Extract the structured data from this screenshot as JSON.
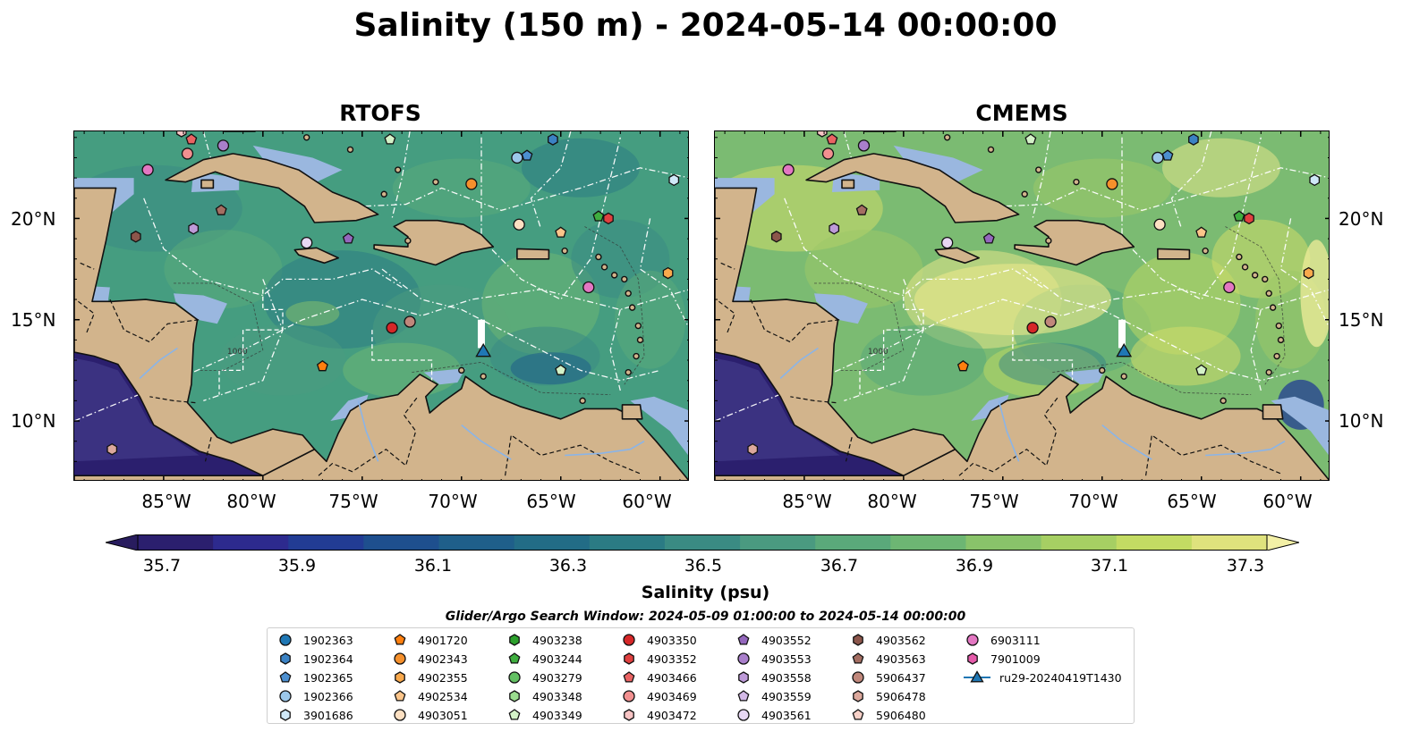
{
  "title": "Salinity (150 m) - 2024-05-14 00:00:00",
  "panels": [
    {
      "title": "RTOFS",
      "variant": "rtofs"
    },
    {
      "title": "CMEMS",
      "variant": "cmems"
    }
  ],
  "x_ticks": [
    "85°W",
    "80°W",
    "75°W",
    "70°W",
    "65°W",
    "60°W"
  ],
  "y_ticks": [
    "20°N",
    "15°N",
    "10°N"
  ],
  "colorbar": {
    "label": "Salinity (psu)",
    "ticks": [
      "35.7",
      "35.9",
      "36.1",
      "36.3",
      "36.5",
      "36.7",
      "36.9",
      "37.1",
      "37.3"
    ],
    "colors": [
      "#2b1f6e",
      "#2d2a8e",
      "#223c94",
      "#1e4f8e",
      "#1f5f8a",
      "#226c86",
      "#2b7b84",
      "#3a8b83",
      "#4a9a80",
      "#5aa97a",
      "#6db673",
      "#89c36a",
      "#a6cf63",
      "#c3db63",
      "#dfe27d"
    ]
  },
  "contour_label": "1000",
  "search_window": "Glider/Argo Search Window: 2024-05-09 01:00:00 to 2024-05-14 00:00:00",
  "legend": [
    {
      "label": "1902363",
      "marker": "circle",
      "color": "#1f77b4"
    },
    {
      "label": "1902364",
      "marker": "hexagon",
      "color": "#3b82c4"
    },
    {
      "label": "1902365",
      "marker": "pentagon",
      "color": "#4c8fd0"
    },
    {
      "label": "1902366",
      "marker": "circle",
      "color": "#9cc8ea"
    },
    {
      "label": "3901686",
      "marker": "hexagon",
      "color": "#cfe8f8"
    },
    {
      "label": "4901720",
      "marker": "pentagon",
      "color": "#ff7f0e"
    },
    {
      "label": "4902343",
      "marker": "circle",
      "color": "#f5902c"
    },
    {
      "label": "4902355",
      "marker": "hexagon",
      "color": "#f9a94c"
    },
    {
      "label": "4902534",
      "marker": "pentagon",
      "color": "#fcc58a"
    },
    {
      "label": "4903051",
      "marker": "circle",
      "color": "#fde0c2"
    },
    {
      "label": "4903238",
      "marker": "hexagon",
      "color": "#2ca02c"
    },
    {
      "label": "4903244",
      "marker": "pentagon",
      "color": "#3fae3f"
    },
    {
      "label": "4903279",
      "marker": "circle",
      "color": "#63c063"
    },
    {
      "label": "4903348",
      "marker": "hexagon",
      "color": "#9bdc8f"
    },
    {
      "label": "4903349",
      "marker": "pentagon",
      "color": "#d4f2c8"
    },
    {
      "label": "4903350",
      "marker": "circle",
      "color": "#d62728"
    },
    {
      "label": "4903352",
      "marker": "hexagon",
      "color": "#e0403f"
    },
    {
      "label": "4903466",
      "marker": "pentagon",
      "color": "#ea6363"
    },
    {
      "label": "4903469",
      "marker": "circle",
      "color": "#f29090"
    },
    {
      "label": "4903472",
      "marker": "hexagon",
      "color": "#f8c4c4"
    },
    {
      "label": "4903552",
      "marker": "pentagon",
      "color": "#9467bd"
    },
    {
      "label": "4903553",
      "marker": "circle",
      "color": "#a97fcb"
    },
    {
      "label": "4903558",
      "marker": "hexagon",
      "color": "#bd9ad8"
    },
    {
      "label": "4903559",
      "marker": "pentagon",
      "color": "#d3b9e6"
    },
    {
      "label": "4903561",
      "marker": "circle",
      "color": "#e7d7f3"
    },
    {
      "label": "4903562",
      "marker": "hexagon",
      "color": "#8c564b"
    },
    {
      "label": "4903563",
      "marker": "pentagon",
      "color": "#a46e62"
    },
    {
      "label": "5906437",
      "marker": "circle",
      "color": "#c0877b"
    },
    {
      "label": "5906478",
      "marker": "hexagon",
      "color": "#dca89c"
    },
    {
      "label": "5906480",
      "marker": "pentagon",
      "color": "#f7d1c8"
    },
    {
      "label": "6903111",
      "marker": "circle",
      "color": "#e377c2"
    },
    {
      "label": "7901009",
      "marker": "hexagon",
      "color": "#e55aaa"
    },
    {
      "label": "ru29-20240419T1430",
      "marker": "triangle-line",
      "color": "#1f77b4"
    }
  ],
  "glider": {
    "label": "ru29-20240419T1430",
    "lon": -68.9,
    "lat": 13.3
  },
  "floats": [
    {
      "label": "4903472",
      "lon": -84.1,
      "lat": 24.3
    },
    {
      "label": "4903466",
      "lon": -83.6,
      "lat": 23.9
    },
    {
      "label": "4903469",
      "lon": -83.8,
      "lat": 23.2
    },
    {
      "label": "4903553",
      "lon": -82.0,
      "lat": 23.6
    },
    {
      "label": "6903111",
      "lon": -85.8,
      "lat": 22.4
    },
    {
      "label": "4903349",
      "lon": -73.6,
      "lat": 23.9
    },
    {
      "label": "1902364",
      "lon": -65.4,
      "lat": 23.9
    },
    {
      "label": "1902366",
      "lon": -67.2,
      "lat": 23.0
    },
    {
      "label": "1902365",
      "lon": -66.7,
      "lat": 23.1
    },
    {
      "label": "4902343",
      "lon": -69.5,
      "lat": 21.7
    },
    {
      "label": "3901686",
      "lon": -59.3,
      "lat": 21.9
    },
    {
      "label": "4903563",
      "lon": -82.1,
      "lat": 20.4
    },
    {
      "label": "4903558",
      "lon": -83.5,
      "lat": 19.5
    },
    {
      "label": "4903244",
      "lon": -63.1,
      "lat": 20.1
    },
    {
      "label": "4903352",
      "lon": -62.6,
      "lat": 20.0
    },
    {
      "label": "4903051",
      "lon": -67.1,
      "lat": 19.7
    },
    {
      "label": "4902534",
      "lon": -65.0,
      "lat": 19.3
    },
    {
      "label": "4903562",
      "lon": -86.4,
      "lat": 19.1
    },
    {
      "label": "4903561",
      "lon": -77.8,
      "lat": 18.8
    },
    {
      "label": "4903552",
      "lon": -75.7,
      "lat": 19.0
    },
    {
      "label": "4902355",
      "lon": -59.6,
      "lat": 17.3
    },
    {
      "label": "6903111",
      "lon": -63.6,
      "lat": 16.6
    },
    {
      "label": "4903350",
      "lon": -73.5,
      "lat": 14.6
    },
    {
      "label": "5906437",
      "lon": -72.6,
      "lat": 14.9
    },
    {
      "label": "4901720",
      "lon": -77.0,
      "lat": 12.7
    },
    {
      "label": "4903349",
      "lon": -65.0,
      "lat": 12.5
    },
    {
      "label": "5906478",
      "lon": -87.6,
      "lat": 8.6
    }
  ],
  "map_extent": {
    "lon": [
      -89.5,
      -58.5
    ],
    "lat": [
      7.0,
      24.3
    ]
  }
}
